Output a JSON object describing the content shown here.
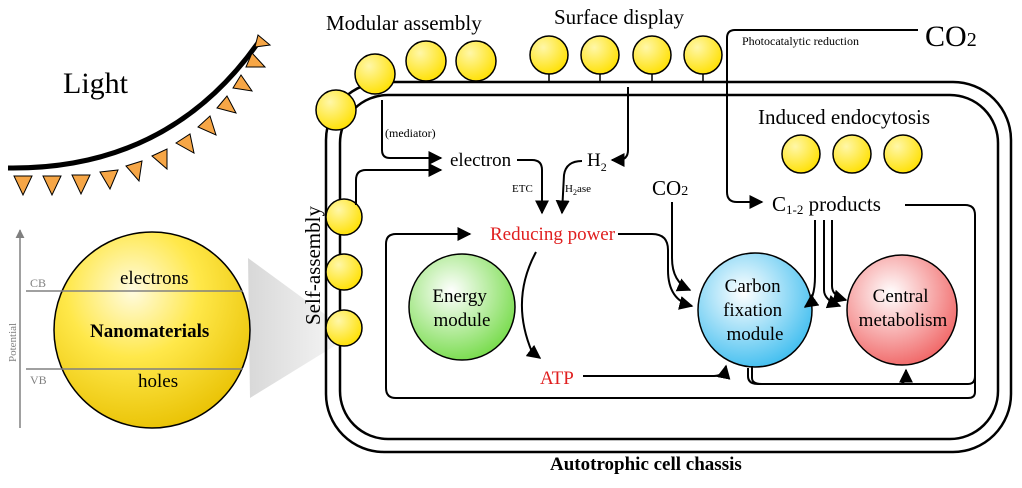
{
  "labels": {
    "light": "Light",
    "modular_assembly": "Modular assembly",
    "surface_display": "Surface display",
    "co2_top": "CO",
    "co2_top_sub": "2",
    "photocatalytic_reduction": "Photocatalytic reduction",
    "induced_endocytosis": "Induced endocytosis",
    "mediator": "(mediator)",
    "electron": "electron",
    "h2_main": "H",
    "h2_sub": "2",
    "etc": "ETC",
    "h2ase_main": "H",
    "h2ase_sub": "2",
    "h2ase_rest": "ase",
    "co2_inner": "CO",
    "co2_inner_sub": "2",
    "c12_main": "C",
    "c12_sub": "1-2",
    "c12_rest": " products",
    "reducing_power": "Reducing power",
    "atp": "ATP",
    "self_assembly": "Self-assembly",
    "energy_module_line1": "Energy",
    "energy_module_line2": "module",
    "carbon_line1": "Carbon",
    "carbon_line2": "fixation",
    "carbon_line3": "module",
    "central_line1": "Central",
    "central_line2": "metabolism",
    "nanomaterials": "Nanomaterials",
    "electrons": "electrons",
    "holes": "holes",
    "cb": "CB",
    "vb": "VB",
    "potential": "Potential",
    "chassis_title": "Autotrophic cell chassis"
  },
  "colors": {
    "red_text": "#e02020",
    "nanoparticle": "#ffe600",
    "energy_module": "#7fe04a",
    "carbon_module": "#3cc4f0",
    "central_metabolism": "#f06060",
    "light_triangles": "#f6a646"
  }
}
